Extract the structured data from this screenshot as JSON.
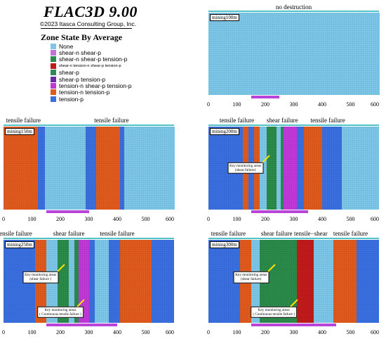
{
  "header": {
    "brand": "FLAC3D 9.00",
    "copyright": "©2023 Itasca Consulting Group, Inc."
  },
  "legend": {
    "title": "Zone State By Average",
    "items": [
      {
        "label": "None",
        "color": "#7cc6e8",
        "small": false
      },
      {
        "label": "shear-n shear-p",
        "color": "#c86ed8",
        "small": false
      },
      {
        "label": "shear-n shear-p tension-p",
        "color": "#2a8a4a",
        "small": false
      },
      {
        "label": "shear-n tension-n shear-p tension-p",
        "color": "#c01a1a",
        "small": true
      },
      {
        "label": "shear-p",
        "color": "#2e8a58",
        "small": false
      },
      {
        "label": "shear-p tension-p",
        "color": "#6a2ca8",
        "small": false
      },
      {
        "label": "tension-n shear-p tension-p",
        "color": "#c038d8",
        "small": false
      },
      {
        "label": "tension-n tension-p",
        "color": "#e05a1c",
        "small": false
      },
      {
        "label": "tension-p",
        "color": "#3a6fe0",
        "small": false
      }
    ]
  },
  "chart_data": [
    {
      "type": "heatmap",
      "label": "mining100m",
      "title": "no destruction",
      "xlim": [
        0,
        600
      ],
      "xticks": [
        "0",
        "100",
        "200",
        "300",
        "400",
        "500",
        "600"
      ],
      "zones": [
        {
          "state": "None",
          "x0": 0,
          "x1": 600
        }
      ],
      "mined_range": [
        150,
        250
      ],
      "annotations": []
    },
    {
      "type": "heatmap",
      "label": "mining150m",
      "title": "",
      "xlim": [
        0,
        600
      ],
      "xticks": [
        "0",
        "100",
        "200",
        "300",
        "400",
        "500",
        "600"
      ],
      "zone_labels": [
        {
          "text": "tensile failure",
          "x": 70
        },
        {
          "text": "tensile failure",
          "x": 380
        }
      ],
      "zones": [
        {
          "state": "tension-n tension-p",
          "x0": 0,
          "x1": 120
        },
        {
          "state": "tension-p",
          "x0": 120,
          "x1": 145
        },
        {
          "state": "None",
          "x0": 145,
          "x1": 290
        },
        {
          "state": "tension-p",
          "x0": 290,
          "x1": 325
        },
        {
          "state": "tension-n tension-p",
          "x0": 325,
          "x1": 410
        },
        {
          "state": "tension-p",
          "x0": 410,
          "x1": 425
        },
        {
          "state": "None",
          "x0": 425,
          "x1": 600
        }
      ],
      "mined_range": [
        150,
        300
      ],
      "annotations": []
    },
    {
      "type": "heatmap",
      "label": "mining200m",
      "title": "",
      "xlim": [
        0,
        600
      ],
      "xticks": [
        "0",
        "100",
        "200",
        "300",
        "400",
        "500",
        "600"
      ],
      "zone_labels": [
        {
          "text": "tensile failure",
          "x": 100
        },
        {
          "text": "shear failure",
          "x": 260
        },
        {
          "text": "tensile failure",
          "x": 420
        }
      ],
      "zones": [
        {
          "state": "tension-p",
          "x0": 0,
          "x1": 120
        },
        {
          "state": "tension-n tension-p",
          "x0": 120,
          "x1": 140
        },
        {
          "state": "tension-p",
          "x0": 140,
          "x1": 160
        },
        {
          "state": "tension-n tension-p",
          "x0": 160,
          "x1": 180
        },
        {
          "state": "None",
          "x0": 180,
          "x1": 205
        },
        {
          "state": "shear-n shear-p tension-p",
          "x0": 205,
          "x1": 240
        },
        {
          "state": "None",
          "x0": 240,
          "x1": 255
        },
        {
          "state": "shear-p",
          "x0": 255,
          "x1": 265
        },
        {
          "state": "tension-n shear-p tension-p",
          "x0": 265,
          "x1": 310
        },
        {
          "state": "tension-p",
          "x0": 310,
          "x1": 335
        },
        {
          "state": "tension-n tension-p",
          "x0": 335,
          "x1": 400
        },
        {
          "state": "tension-p",
          "x0": 400,
          "x1": 470
        },
        {
          "state": "None",
          "x0": 470,
          "x1": 600
        }
      ],
      "mined_range": [
        150,
        350
      ],
      "annotations": [
        {
          "text": "Key monitoring areas\n(shear failure)",
          "x": 130,
          "y": 0.5
        }
      ]
    },
    {
      "type": "heatmap",
      "label": "mining250m",
      "title": "",
      "xlim": [
        0,
        600
      ],
      "xticks": [
        "0",
        "100",
        "200",
        "300",
        "400",
        "500",
        "600"
      ],
      "zone_labels": [
        {
          "text": "tensile failure",
          "x": 40
        },
        {
          "text": "shear failure",
          "x": 230
        },
        {
          "text": "tensile failure",
          "x": 400
        }
      ],
      "zones": [
        {
          "state": "tension-p",
          "x0": 0,
          "x1": 110
        },
        {
          "state": "tension-n tension-p",
          "x0": 110,
          "x1": 150
        },
        {
          "state": "None",
          "x0": 150,
          "x1": 190
        },
        {
          "state": "shear-n shear-p tension-p",
          "x0": 190,
          "x1": 230
        },
        {
          "state": "None",
          "x0": 230,
          "x1": 250
        },
        {
          "state": "shear-n shear-p tension-p",
          "x0": 250,
          "x1": 265
        },
        {
          "state": "tension-n shear-p tension-p",
          "x0": 265,
          "x1": 300
        },
        {
          "state": "tension-p",
          "x0": 300,
          "x1": 320
        },
        {
          "state": "None",
          "x0": 320,
          "x1": 370
        },
        {
          "state": "tension-p",
          "x0": 370,
          "x1": 410
        },
        {
          "state": "tension-n tension-p",
          "x0": 410,
          "x1": 520
        },
        {
          "state": "tension-p",
          "x0": 520,
          "x1": 600
        }
      ],
      "mined_range": [
        150,
        400
      ],
      "annotations": [
        {
          "text": "Key monitoring areas\n(shear failure )",
          "x": 130,
          "y": 0.45
        },
        {
          "text": "Key monitoring areas\n( Continuous tensile failure )",
          "x": 200,
          "y": 0.87
        }
      ]
    },
    {
      "type": "heatmap",
      "label": "mining300m",
      "title": "",
      "xlim": [
        0,
        600
      ],
      "xticks": [
        "0",
        "100",
        "200",
        "300",
        "400",
        "500",
        "600"
      ],
      "zone_labels": [
        {
          "text": "tensile failure",
          "x": 70
        },
        {
          "text": "shear failure",
          "x": 240
        },
        {
          "text": "tensile−shear",
          "x": 360
        },
        {
          "text": "tensile failure",
          "x": 500
        }
      ],
      "zones": [
        {
          "state": "tension-p",
          "x0": 0,
          "x1": 110
        },
        {
          "state": "tension-n tension-p",
          "x0": 110,
          "x1": 150
        },
        {
          "state": "None",
          "x0": 150,
          "x1": 180
        },
        {
          "state": "shear-n shear-p tension-p",
          "x0": 180,
          "x1": 310
        },
        {
          "state": "shear-n tension-n shear-p tension-p",
          "x0": 310,
          "x1": 370
        },
        {
          "state": "None",
          "x0": 370,
          "x1": 440
        },
        {
          "state": "tension-n tension-p",
          "x0": 440,
          "x1": 520
        },
        {
          "state": "tension-p",
          "x0": 520,
          "x1": 600
        }
      ],
      "mined_range": [
        150,
        450
      ],
      "annotations": [
        {
          "text": "Key monitoring areas\n(shear failure)",
          "x": 150,
          "y": 0.45
        },
        {
          "text": "Key monitoring areas\n( Continuous tensile failure )",
          "x": 230,
          "y": 0.87
        }
      ]
    }
  ]
}
